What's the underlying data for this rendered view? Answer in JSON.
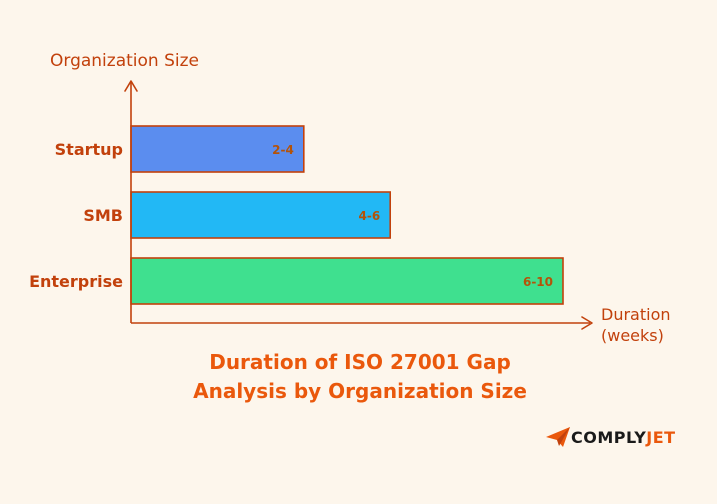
{
  "chart_data": {
    "type": "bar",
    "orientation": "horizontal",
    "title": "Duration of ISO 27001 Gap Analysis by Organization Size",
    "title_lines": [
      "Duration of ISO 27001 Gap",
      "Analysis by Organization Size"
    ],
    "ylabel": "Organization Size",
    "xlabel_lines": [
      "Duration",
      "(weeks)"
    ],
    "categories": [
      "Startup",
      "SMB",
      "Enterprise"
    ],
    "series": [
      {
        "ranges": [
          [
            2,
            4
          ],
          [
            4,
            6
          ],
          [
            6,
            10
          ]
        ],
        "max_values": [
          4,
          6,
          10
        ],
        "value_labels": [
          "2-4",
          "4-6",
          "6-10"
        ],
        "colors": [
          "#5b8def",
          "#22b8f5",
          "#3fe08f"
        ]
      }
    ],
    "xlim": [
      0,
      10
    ],
    "grid": false,
    "legend": "none"
  },
  "brand": {
    "name_part1": "COMPLY",
    "name_part2": "JET",
    "icon": "paper-plane-icon",
    "accent": "#ea580c"
  }
}
